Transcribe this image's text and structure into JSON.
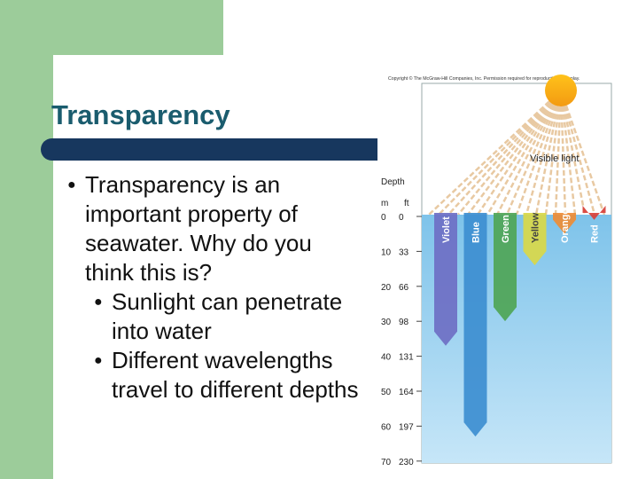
{
  "slide": {
    "title": "Transparency",
    "bullets": [
      {
        "level": 1,
        "text": "Transparency is an important property of seawater. Why do you think this is?"
      },
      {
        "level": 2,
        "text": "Sunlight can penetrate into water"
      },
      {
        "level": 2,
        "text": "Different wavelengths travel to different depths"
      }
    ]
  },
  "figure": {
    "copyright": "Copyright © The McGraw-Hill Companies, Inc. Permission required for reproduction or display.",
    "visible_light_label": "Visible light",
    "depth_label": "Depth",
    "unit_m": "m",
    "unit_ft": "ft",
    "depths": [
      {
        "m": "0",
        "ft": "0"
      },
      {
        "m": "10",
        "ft": "33"
      },
      {
        "m": "20",
        "ft": "66"
      },
      {
        "m": "30",
        "ft": "98"
      },
      {
        "m": "40",
        "ft": "131"
      },
      {
        "m": "50",
        "ft": "164"
      },
      {
        "m": "60",
        "ft": "197"
      },
      {
        "m": "70",
        "ft": "230"
      }
    ],
    "bands": [
      {
        "name": "Violet",
        "color": "#6e6fc4",
        "depth_m": 38
      },
      {
        "name": "Blue",
        "color": "#3d8ed0",
        "depth_m": 64
      },
      {
        "name": "Green",
        "color": "#4fa556",
        "depth_m": 31
      },
      {
        "name": "Yellow",
        "color": "#d9d848",
        "depth_m": 15
      },
      {
        "name": "Orange",
        "color": "#ee8c35",
        "depth_m": 6
      },
      {
        "name": "Red",
        "color": "#d8403a",
        "depth_m": 2
      }
    ]
  }
}
